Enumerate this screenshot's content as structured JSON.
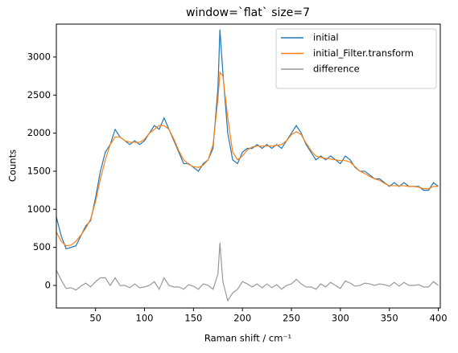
{
  "chart_data": {
    "type": "line",
    "title": "window=`flat` size=7",
    "x_label": "Raman shift / cm⁻¹",
    "y_label": "Counts",
    "x": [
      10,
      15,
      20,
      25,
      30,
      35,
      40,
      45,
      50,
      55,
      60,
      65,
      70,
      75,
      80,
      85,
      90,
      95,
      100,
      105,
      110,
      115,
      120,
      125,
      130,
      135,
      140,
      145,
      150,
      155,
      160,
      165,
      170,
      175,
      177,
      180,
      185,
      190,
      195,
      200,
      205,
      210,
      215,
      220,
      225,
      230,
      235,
      240,
      245,
      250,
      255,
      260,
      265,
      270,
      275,
      280,
      285,
      290,
      295,
      300,
      305,
      310,
      315,
      320,
      325,
      330,
      335,
      340,
      345,
      350,
      355,
      360,
      365,
      370,
      375,
      380,
      385,
      390,
      395,
      400
    ],
    "series": [
      {
        "name": "initial",
        "color": "#1f77b4",
        "values": [
          900,
          650,
          480,
          500,
          520,
          650,
          780,
          850,
          1150,
          1500,
          1750,
          1850,
          2050,
          1950,
          1900,
          1850,
          1900,
          1850,
          1900,
          2000,
          2100,
          2050,
          2200,
          2050,
          1900,
          1750,
          1600,
          1600,
          1550,
          1500,
          1600,
          1650,
          1800,
          2600,
          3360,
          2800,
          2000,
          1650,
          1600,
          1750,
          1800,
          1800,
          1850,
          1800,
          1850,
          1800,
          1850,
          1800,
          1900,
          2000,
          2100,
          2000,
          1850,
          1750,
          1650,
          1700,
          1650,
          1700,
          1650,
          1600,
          1700,
          1650,
          1550,
          1500,
          1500,
          1450,
          1400,
          1400,
          1350,
          1300,
          1350,
          1300,
          1350,
          1300,
          1300,
          1300,
          1250,
          1250,
          1350,
          1300
        ]
      },
      {
        "name": "initial_Filter.transform",
        "color": "#ff7f0e",
        "values": [
          700,
          580,
          520,
          530,
          580,
          660,
          750,
          870,
          1100,
          1400,
          1650,
          1850,
          1950,
          1950,
          1900,
          1880,
          1880,
          1880,
          1920,
          2000,
          2050,
          2100,
          2100,
          2050,
          1920,
          1770,
          1650,
          1590,
          1560,
          1550,
          1580,
          1650,
          1850,
          2450,
          2800,
          2750,
          2200,
          1750,
          1650,
          1700,
          1780,
          1820,
          1830,
          1830,
          1830,
          1830,
          1840,
          1850,
          1900,
          1980,
          2020,
          1980,
          1870,
          1770,
          1700,
          1680,
          1670,
          1660,
          1650,
          1640,
          1640,
          1620,
          1560,
          1500,
          1470,
          1430,
          1400,
          1380,
          1340,
          1310,
          1310,
          1310,
          1310,
          1300,
          1300,
          1290,
          1270,
          1270,
          1300,
          1300
        ]
      },
      {
        "name": "difference",
        "color": "#999999",
        "values": [
          200,
          70,
          -40,
          -30,
          -60,
          -10,
          30,
          -20,
          50,
          100,
          100,
          0,
          100,
          0,
          0,
          -30,
          20,
          -30,
          -20,
          0,
          50,
          -50,
          100,
          0,
          -20,
          -20,
          -50,
          10,
          -10,
          -50,
          20,
          0,
          -50,
          150,
          560,
          50,
          -200,
          -100,
          -50,
          50,
          20,
          -20,
          20,
          -30,
          20,
          -30,
          10,
          -50,
          0,
          20,
          80,
          20,
          -20,
          -20,
          -50,
          20,
          -20,
          40,
          0,
          -40,
          60,
          30,
          -10,
          0,
          30,
          20,
          0,
          20,
          10,
          -10,
          40,
          -10,
          40,
          0,
          0,
          10,
          -20,
          -20,
          50,
          0
        ]
      }
    ],
    "xlim": [
      10,
      402
    ],
    "ylim": [
      -296,
      3432
    ],
    "xticks": [
      50,
      100,
      150,
      200,
      250,
      300,
      350,
      400
    ],
    "yticks": [
      0,
      500,
      1000,
      1500,
      2000,
      2500,
      3000
    ],
    "legend": "upper right",
    "grid": false
  }
}
